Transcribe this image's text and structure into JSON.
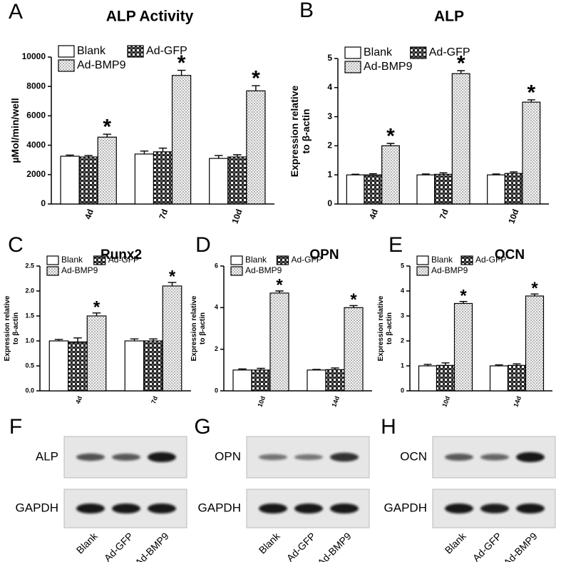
{
  "chart_data": [
    {
      "type": "bar",
      "panel": "A",
      "title": "ALP Activity",
      "ylabel": [
        "µMol/min/well"
      ],
      "categories": [
        "4d",
        "7d",
        "10d"
      ],
      "ylim": [
        0,
        10000
      ],
      "yticks": [
        0,
        2000,
        4000,
        6000,
        8000,
        10000
      ],
      "series": [
        {
          "name": "Blank",
          "color": "#ffffff",
          "pattern": "solid",
          "values": [
            3250,
            3400,
            3100
          ],
          "errors": [
            80,
            200,
            200
          ]
        },
        {
          "name": "Ad-GFP",
          "color": "#222222",
          "pattern": "checker",
          "values": [
            3200,
            3550,
            3200
          ],
          "errors": [
            100,
            250,
            150
          ]
        },
        {
          "name": "Ad-BMP9",
          "color": "#888888",
          "pattern": "dots",
          "values": [
            4550,
            8750,
            7700
          ],
          "errors": [
            200,
            350,
            350
          ],
          "annotations": [
            "*",
            "*",
            "*"
          ]
        }
      ]
    },
    {
      "type": "bar",
      "panel": "B",
      "title": "ALP",
      "ylabel": [
        "Expression relative",
        "to β-actin"
      ],
      "categories": [
        "4d",
        "7d",
        "10d"
      ],
      "ylim": [
        0,
        5
      ],
      "yticks": [
        0,
        1,
        2,
        3,
        4,
        5
      ],
      "series": [
        {
          "name": "Blank",
          "color": "#ffffff",
          "pattern": "solid",
          "values": [
            1,
            1,
            1
          ],
          "errors": [
            0.02,
            0.03,
            0.03
          ]
        },
        {
          "name": "Ad-GFP",
          "color": "#222222",
          "pattern": "checker",
          "values": [
            1,
            1.02,
            1.05
          ],
          "errors": [
            0.04,
            0.05,
            0.05
          ]
        },
        {
          "name": "Ad-BMP9",
          "color": "#888888",
          "pattern": "dots",
          "values": [
            2.0,
            4.48,
            3.5
          ],
          "errors": [
            0.08,
            0.1,
            0.08
          ],
          "annotations": [
            "*",
            "*",
            "*"
          ]
        }
      ]
    },
    {
      "type": "bar",
      "panel": "C",
      "title": "Runx2",
      "ylabel": [
        "Expression relative",
        "to β-actin"
      ],
      "categories": [
        "4d",
        "7d"
      ],
      "ylim": [
        0,
        2.5
      ],
      "yticks": [
        {
          "value": 0,
          "label": "0.0"
        },
        0.5,
        {
          "value": 1,
          "label": "1.0"
        },
        1.5,
        {
          "value": 2,
          "label": "2.0"
        },
        2.5
      ],
      "series": [
        {
          "name": "Blank",
          "color": "#ffffff",
          "pattern": "solid",
          "values": [
            1.0,
            1.0
          ],
          "errors": [
            0.03,
            0.04
          ]
        },
        {
          "name": "Ad-GFP",
          "color": "#222222",
          "pattern": "checker",
          "values": [
            0.98,
            1.0
          ],
          "errors": [
            0.08,
            0.04
          ]
        },
        {
          "name": "Ad-BMP9",
          "color": "#888888",
          "pattern": "dots",
          "values": [
            1.5,
            2.1
          ],
          "errors": [
            0.06,
            0.07
          ],
          "annotations": [
            "*",
            "*"
          ]
        }
      ]
    },
    {
      "type": "bar",
      "panel": "D",
      "title": "OPN",
      "ylabel": [
        "Expression relative",
        "to β-actin"
      ],
      "categories": [
        "10d",
        "14d"
      ],
      "ylim": [
        0,
        6
      ],
      "yticks": [
        0,
        2,
        4,
        6
      ],
      "series": [
        {
          "name": "Blank",
          "color": "#ffffff",
          "pattern": "solid",
          "values": [
            1.0,
            1.0
          ],
          "errors": [
            0.05,
            0.03
          ]
        },
        {
          "name": "Ad-GFP",
          "color": "#222222",
          "pattern": "checker",
          "values": [
            1.0,
            1.02
          ],
          "errors": [
            0.08,
            0.08
          ]
        },
        {
          "name": "Ad-BMP9",
          "color": "#888888",
          "pattern": "dots",
          "values": [
            4.7,
            4.0
          ],
          "errors": [
            0.1,
            0.1
          ],
          "annotations": [
            "*",
            "*"
          ]
        }
      ]
    },
    {
      "type": "bar",
      "panel": "E",
      "title": "OCN",
      "ylabel": [
        "Expression relative",
        "to β-actin"
      ],
      "categories": [
        "10d",
        "14d"
      ],
      "ylim": [
        0,
        5
      ],
      "yticks": [
        0,
        1,
        2,
        3,
        4,
        5
      ],
      "series": [
        {
          "name": "Blank",
          "color": "#ffffff",
          "pattern": "solid",
          "values": [
            1.0,
            1.0
          ],
          "errors": [
            0.06,
            0.04
          ]
        },
        {
          "name": "Ad-GFP",
          "color": "#222222",
          "pattern": "checker",
          "values": [
            1.02,
            1.02
          ],
          "errors": [
            0.1,
            0.06
          ]
        },
        {
          "name": "Ad-BMP9",
          "color": "#888888",
          "pattern": "dots",
          "values": [
            3.5,
            3.8
          ],
          "errors": [
            0.08,
            0.08
          ],
          "annotations": [
            "*",
            "*"
          ]
        }
      ]
    }
  ],
  "blots": [
    {
      "panel": "F",
      "rows": [
        "ALP",
        "GAPDH"
      ],
      "lanes": [
        "Blank",
        "Ad-GFP",
        "Ad-BMP9"
      ]
    },
    {
      "panel": "G",
      "rows": [
        "OPN",
        "GAPDH"
      ],
      "lanes": [
        "Blank",
        "Ad-GFP",
        "Ad-BMP9"
      ]
    },
    {
      "panel": "H",
      "rows": [
        "OCN",
        "GAPDH"
      ],
      "lanes": [
        "Blank",
        "Ad-GFP",
        "Ad-BMP9"
      ]
    }
  ]
}
